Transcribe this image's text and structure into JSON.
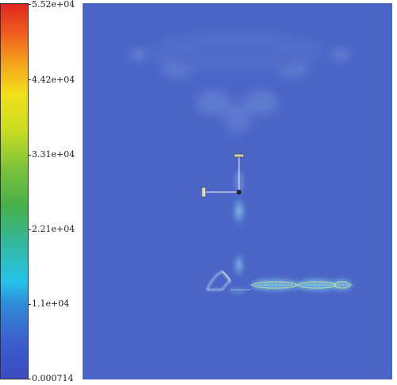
{
  "colorbar": {
    "max_label": "5.52e+04",
    "ticks": [
      "5.52e+04",
      "4.42e+04",
      "3.31e+04",
      "2.21e+04",
      "1.1e+04",
      "0.000714"
    ],
    "tick_values": [
      55200,
      44200,
      33100,
      22100,
      11000,
      0.000714
    ],
    "min_label": "0.000714",
    "colormap": [
      "#3b4cc0",
      "#2f72d2",
      "#25b8e6",
      "#4fc37a",
      "#7fcb3c",
      "#d8e21c",
      "#f5c318",
      "#f07a1a",
      "#e0261e"
    ]
  },
  "field": {
    "background_color": "#4a63c6"
  }
}
